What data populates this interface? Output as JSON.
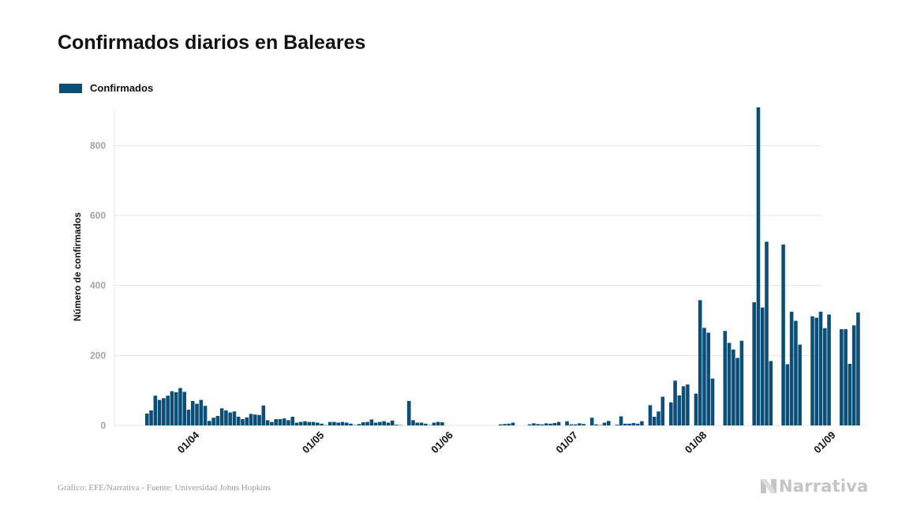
{
  "colors": {
    "bar": "#0b4f79",
    "grid": "#e3e3e3",
    "tick_text": "#a3a3a3"
  },
  "chart_data": {
    "type": "bar",
    "title": "Confirmados diarios en Baleares",
    "ylabel": "Número de confirmados",
    "xlabel": "",
    "legend": "top-left",
    "grid": true,
    "ylim": [
      0,
      900
    ],
    "yticks": [
      0,
      200,
      400,
      600,
      800
    ],
    "xticks": [
      "01/04",
      "01/05",
      "01/06",
      "01/07",
      "01/08",
      "01/09"
    ],
    "series": [
      {
        "name": "Confirmados",
        "start": "2020-03-22",
        "end": "2020-09-21",
        "values": [
          34,
          43,
          85,
          73,
          78,
          85,
          98,
          95,
          107,
          96,
          45,
          70,
          62,
          73,
          56,
          13,
          22,
          27,
          49,
          43,
          37,
          40,
          25,
          18,
          23,
          33,
          31,
          30,
          57,
          15,
          10,
          18,
          18,
          20,
          15,
          25,
          8,
          10,
          12,
          10,
          10,
          8,
          5,
          1,
          10,
          10,
          8,
          10,
          8,
          5,
          1,
          4,
          9,
          10,
          17,
          8,
          10,
          12,
          8,
          14,
          2,
          1,
          0,
          70,
          15,
          8,
          8,
          5,
          1,
          8,
          10,
          9,
          0,
          0,
          0,
          0,
          0,
          0,
          0,
          0,
          0,
          0,
          0,
          0,
          0,
          3,
          4,
          5,
          8,
          0,
          0,
          0,
          3,
          6,
          4,
          3,
          6,
          5,
          7,
          10,
          0,
          12,
          3,
          3,
          6,
          4,
          0,
          22,
          3,
          1,
          8,
          13,
          0,
          2,
          26,
          5,
          5,
          7,
          5,
          12,
          0,
          58,
          25,
          40,
          82,
          0,
          66,
          128,
          86,
          112,
          117,
          0,
          91,
          358,
          279,
          265,
          134,
          0,
          0,
          270,
          236,
          217,
          193,
          242,
          0,
          0,
          352,
          909,
          337,
          525,
          184,
          0,
          0,
          517,
          175,
          325,
          299,
          231,
          0,
          0,
          312,
          308,
          325,
          278,
          317,
          0,
          0,
          275,
          275,
          176,
          286,
          323
        ]
      }
    ]
  },
  "footer": {
    "source": "Gráfico: EFE/Narrativa - Fuente: Universidad Johns Hopkins",
    "brand": "Narrativa"
  }
}
